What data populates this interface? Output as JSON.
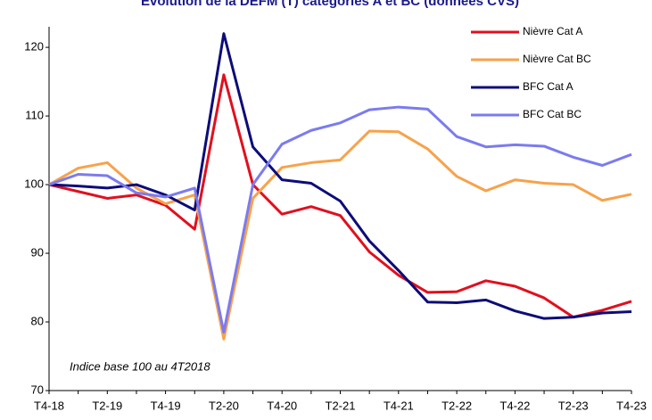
{
  "chart_data": {
    "type": "line",
    "title": "Évolution de la DEFM (T) catégories A et BC (données CVS)",
    "annotation": "Indice base 100 au 4T2018",
    "categories": [
      "T4-18",
      null,
      "T2-19",
      null,
      "T4-19",
      null,
      "T2-20",
      null,
      "T4-20",
      null,
      "T2-21",
      null,
      "T4-21",
      null,
      "T2-22",
      null,
      "T4-22",
      null,
      "T2-23",
      null,
      "T4-23"
    ],
    "series": [
      {
        "name": "Nièvre  Cat A",
        "color": "#e0101e",
        "values": [
          100,
          99,
          98,
          98.5,
          97,
          93.5,
          116,
          100,
          95.7,
          96.8,
          95.5,
          90.2,
          86.8,
          84.3,
          84.4,
          86,
          85.2,
          83.5,
          80.7,
          81.7,
          83
        ]
      },
      {
        "name": "Nièvre  Cat BC",
        "color": "#f7a24b",
        "values": [
          100,
          102.4,
          103.2,
          99.5,
          97.2,
          98.5,
          77.5,
          98,
          102.5,
          103.2,
          103.6,
          107.8,
          107.7,
          105.2,
          101.2,
          99.1,
          100.7,
          100.2,
          100,
          97.7,
          98.6
        ]
      },
      {
        "name": "BFC Cat A",
        "color": "#0c0c7a",
        "values": [
          100,
          99.8,
          99.5,
          100,
          98.5,
          96.3,
          122,
          105.5,
          100.7,
          100.2,
          97.6,
          91.8,
          87.5,
          82.9,
          82.8,
          83.2,
          81.6,
          80.5,
          80.7,
          81.3,
          81.5
        ]
      },
      {
        "name": "BFC Cat BC",
        "color": "#7b7bef",
        "values": [
          100,
          101.5,
          101.3,
          98.8,
          98.2,
          99.5,
          78.5,
          100,
          105.9,
          107.9,
          109,
          110.9,
          111.3,
          111,
          107,
          105.5,
          105.8,
          105.6,
          104,
          102.8,
          104.4
        ]
      }
    ],
    "ylim": [
      70,
      123
    ],
    "yticks": [
      70,
      80,
      90,
      100,
      110,
      120
    ],
    "grid": false,
    "legend": "top-right"
  }
}
